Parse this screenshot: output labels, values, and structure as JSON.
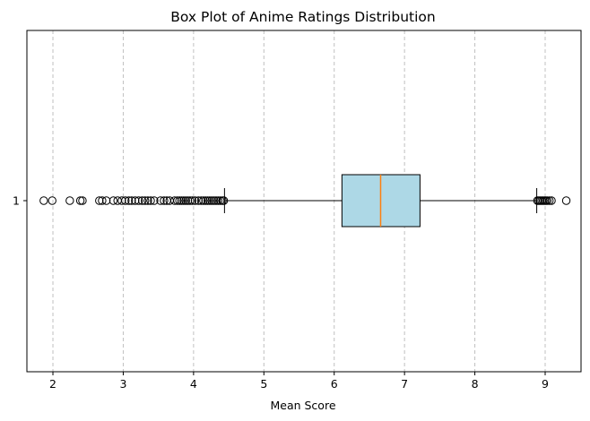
{
  "chart_data": {
    "type": "box",
    "orientation": "horizontal",
    "title": "Box Plot of Anime Ratings Distribution",
    "xlabel": "Mean Score",
    "ylabel": "",
    "xlim": [
      1.63,
      9.51
    ],
    "xticks": [
      2,
      3,
      4,
      5,
      6,
      7,
      8,
      9
    ],
    "yticks": [
      "1"
    ],
    "grid": {
      "axis": "x",
      "style": "dashed",
      "color": "#c0c0c0"
    },
    "box": {
      "category": "1",
      "whisker_low": 4.44,
      "q1": 6.11,
      "median": 6.66,
      "q3": 7.22,
      "whisker_high": 8.88,
      "fill_color": "#add8e6",
      "median_color": "#ff7f0e",
      "outliers": [
        1.87,
        1.99,
        2.24,
        2.39,
        2.42,
        2.66,
        2.7,
        2.76,
        2.86,
        2.92,
        2.98,
        3.03,
        3.08,
        3.12,
        3.17,
        3.22,
        3.27,
        3.31,
        3.35,
        3.39,
        3.44,
        3.53,
        3.58,
        3.62,
        3.66,
        3.73,
        3.77,
        3.8,
        3.83,
        3.86,
        3.89,
        3.92,
        3.95,
        3.98,
        4.02,
        4.07,
        4.11,
        4.14,
        4.17,
        4.2,
        4.23,
        4.26,
        4.29,
        4.32,
        4.35,
        4.38,
        4.41,
        4.43,
        8.89,
        8.91,
        8.93,
        8.95,
        8.97,
        8.99,
        9.01,
        9.03,
        9.06,
        9.09,
        9.3
      ]
    }
  }
}
